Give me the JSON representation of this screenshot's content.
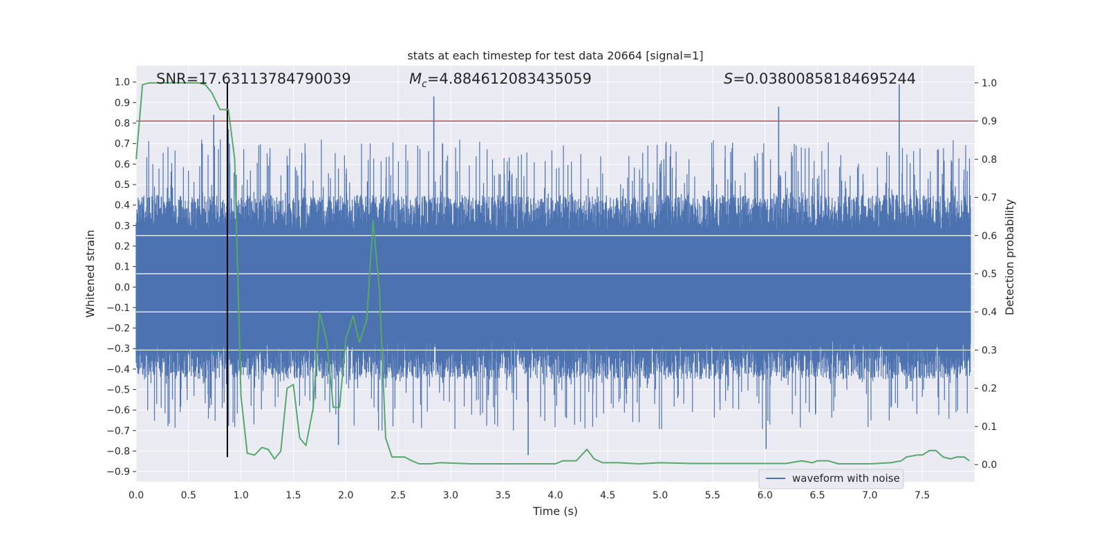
{
  "chart_data": {
    "type": "line",
    "title": "stats at each timestep for test data 20664 [signal=1]",
    "xlabel": "Time (s)",
    "ylabel_left": "Whitened strain",
    "ylabel_right": "Detection probability",
    "xlim": [
      0.0,
      8.0
    ],
    "ylim_left": [
      -0.95,
      1.08
    ],
    "ylim_right": [
      -0.045,
      1.045
    ],
    "grid": true,
    "x_ticks": [
      "0.0",
      "0.5",
      "1.0",
      "1.5",
      "2.0",
      "2.5",
      "3.0",
      "3.5",
      "4.0",
      "4.5",
      "5.0",
      "5.5",
      "6.0",
      "6.5",
      "7.0",
      "7.5"
    ],
    "x_tick_values": [
      0.0,
      0.5,
      1.0,
      1.5,
      2.0,
      2.5,
      3.0,
      3.5,
      4.0,
      4.5,
      5.0,
      5.5,
      6.0,
      6.5,
      7.0,
      7.5
    ],
    "y_ticks_left": [
      "1.0",
      "0.9",
      "0.8",
      "0.7",
      "0.6",
      "0.5",
      "0.4",
      "0.3",
      "0.2",
      "0.1",
      "0.0",
      "−0.1",
      "−0.2",
      "−0.3",
      "−0.4",
      "−0.5",
      "−0.6",
      "−0.7",
      "−0.8",
      "−0.9"
    ],
    "y_tick_values_left": [
      1.0,
      0.9,
      0.8,
      0.7,
      0.6,
      0.5,
      0.4,
      0.3,
      0.2,
      0.1,
      0.0,
      -0.1,
      -0.2,
      -0.3,
      -0.4,
      -0.5,
      -0.6,
      -0.7,
      -0.8,
      -0.9
    ],
    "y_ticks_right": [
      "1.0",
      "0.9",
      "0.8",
      "0.7",
      "0.6",
      "0.5",
      "0.4",
      "0.3",
      "0.2",
      "0.1",
      "0.0"
    ],
    "y_tick_values_right": [
      1.0,
      0.9,
      0.8,
      0.7,
      0.6,
      0.5,
      0.4,
      0.3,
      0.2,
      0.1,
      0.0
    ],
    "annotations": {
      "snr": "SNR=17.63113784790039",
      "mc_symbol": "M",
      "mc_sub": "c",
      "mc_value": "=4.884612083435059",
      "s_symbol": "S",
      "s_value": "=0.03800858184695244"
    },
    "threshold_line": {
      "axis": "right",
      "value": 0.9,
      "color": "#c44e52"
    },
    "event_marker": {
      "x": 0.87,
      "y_from": -0.83,
      "y_to": 1.0,
      "color": "#000000"
    },
    "series": [
      {
        "name": "waveform with noise",
        "axis": "left",
        "color": "#4c72b0",
        "style": "dense noise band",
        "typical_range": [
          -0.45,
          0.45
        ],
        "peaks": [
          {
            "x": 0.74,
            "y": 0.84
          },
          {
            "x": 0.88,
            "y": 0.77
          },
          {
            "x": 2.84,
            "y": 0.93
          },
          {
            "x": 6.13,
            "y": 0.88
          },
          {
            "x": 7.28,
            "y": 0.99
          },
          {
            "x": 3.74,
            "y": -0.82
          },
          {
            "x": 1.93,
            "y": -0.77
          },
          {
            "x": 6.01,
            "y": -0.79
          }
        ]
      },
      {
        "name": "detection probability",
        "axis": "right",
        "color": "#55a868",
        "x": [
          0.0,
          0.06,
          0.12,
          0.2,
          0.3,
          0.4,
          0.5,
          0.6,
          0.66,
          0.72,
          0.8,
          0.88,
          0.94,
          1.0,
          1.06,
          1.13,
          1.2,
          1.26,
          1.32,
          1.38,
          1.44,
          1.5,
          1.56,
          1.62,
          1.69,
          1.75,
          1.82,
          1.88,
          1.94,
          2.0,
          2.07,
          2.13,
          2.2,
          2.26,
          2.32,
          2.38,
          2.44,
          2.5,
          2.56,
          2.63,
          2.7,
          2.8,
          2.9,
          3.0,
          3.2,
          3.4,
          3.7,
          4.0,
          4.07,
          4.2,
          4.3,
          4.37,
          4.45,
          4.6,
          4.8,
          5.0,
          5.3,
          5.7,
          6.0,
          6.2,
          6.35,
          6.45,
          6.5,
          6.6,
          6.7,
          6.8,
          7.0,
          7.2,
          7.3,
          7.35,
          7.45,
          7.5,
          7.57,
          7.63,
          7.7,
          7.77,
          7.83,
          7.9,
          7.95
        ],
        "y": [
          0.8,
          0.995,
          1.0,
          1.0,
          1.0,
          1.0,
          1.0,
          1.0,
          0.995,
          0.975,
          0.93,
          0.93,
          0.8,
          0.18,
          0.03,
          0.025,
          0.045,
          0.04,
          0.015,
          0.035,
          0.2,
          0.21,
          0.07,
          0.05,
          0.15,
          0.4,
          0.32,
          0.15,
          0.15,
          0.33,
          0.39,
          0.32,
          0.38,
          0.64,
          0.46,
          0.07,
          0.02,
          0.02,
          0.02,
          0.01,
          0.002,
          0.002,
          0.005,
          0.004,
          0.002,
          0.002,
          0.002,
          0.002,
          0.01,
          0.01,
          0.04,
          0.015,
          0.005,
          0.005,
          0.002,
          0.005,
          0.003,
          0.003,
          0.003,
          0.003,
          0.01,
          0.005,
          0.01,
          0.01,
          0.002,
          0.002,
          0.002,
          0.005,
          0.01,
          0.02,
          0.025,
          0.025,
          0.037,
          0.037,
          0.02,
          0.015,
          0.02,
          0.02,
          0.01
        ]
      }
    ],
    "legend": {
      "position": "lower-right",
      "entries": [
        "waveform with noise"
      ]
    }
  }
}
